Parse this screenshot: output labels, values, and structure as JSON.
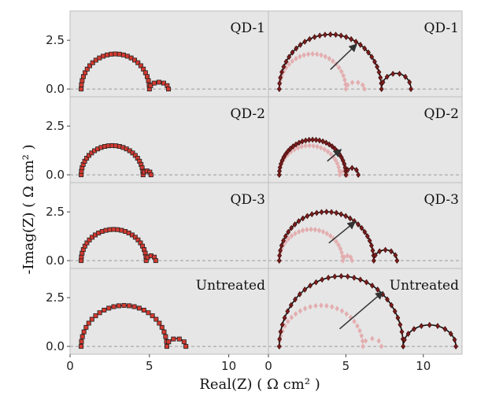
{
  "chart_data": {
    "type": "scatter",
    "xlabel": "Real(Z) ( Ω cm² )",
    "ylabel": "-Imag(Z) ( Ω cm² )",
    "xlim": [
      0,
      12.5
    ],
    "ylim": [
      -0.4,
      4.0
    ],
    "xticks": [
      "0",
      "5",
      "10"
    ],
    "yticks": [
      "0.0",
      "2.5"
    ],
    "grid": false,
    "background": "#e6e6e6",
    "rows": [
      "QD-1",
      "QD-2",
      "QD-3",
      "Untreated"
    ],
    "left_column": [
      {
        "label": "QD-1",
        "r0": 0.7,
        "arc_end": 5.0,
        "arc_height": 1.8,
        "tail_end": 6.2,
        "tail_height": 0.35
      },
      {
        "label": "QD-2",
        "r0": 0.7,
        "arc_end": 4.6,
        "arc_height": 1.5,
        "tail_end": 5.1,
        "tail_height": 0.2
      },
      {
        "label": "QD-3",
        "r0": 0.7,
        "arc_end": 4.8,
        "arc_height": 1.6,
        "tail_end": 5.4,
        "tail_height": 0.25
      },
      {
        "label": "Untreated",
        "r0": 0.7,
        "arc_end": 6.1,
        "arc_height": 2.1,
        "tail_end": 7.3,
        "tail_height": 0.4
      }
    ],
    "right_column": [
      {
        "label": "QD-1",
        "faded": {
          "r0": 0.7,
          "arc_end": 5.0,
          "arc_height": 1.8,
          "tail_end": 6.2,
          "tail_height": 0.35
        },
        "dark": {
          "r0": 0.7,
          "arc_end": 7.3,
          "arc_height": 2.8,
          "tail_end": 9.2,
          "tail_height": 0.8
        }
      },
      {
        "label": "QD-2",
        "faded": {
          "r0": 0.7,
          "arc_end": 4.6,
          "arc_height": 1.5,
          "tail_end": 5.1,
          "tail_height": 0.2
        },
        "dark": {
          "r0": 0.7,
          "arc_end": 5.0,
          "arc_height": 1.8,
          "tail_end": 5.8,
          "tail_height": 0.35
        }
      },
      {
        "label": "QD-3",
        "faded": {
          "r0": 0.7,
          "arc_end": 4.8,
          "arc_height": 1.6,
          "tail_end": 5.4,
          "tail_height": 0.25
        },
        "dark": {
          "r0": 0.7,
          "arc_end": 6.8,
          "arc_height": 2.5,
          "tail_end": 8.3,
          "tail_height": 0.55
        }
      },
      {
        "label": "Untreated",
        "faded": {
          "r0": 0.7,
          "arc_end": 6.1,
          "arc_height": 2.1,
          "tail_end": 7.3,
          "tail_height": 0.4
        },
        "dark": {
          "r0": 0.7,
          "arc_end": 8.7,
          "arc_height": 3.6,
          "tail_end": 12.1,
          "tail_height": 1.1
        }
      }
    ],
    "arrows": [
      {
        "from": [
          4.0,
          1.0
        ],
        "to": [
          5.7,
          2.3
        ]
      },
      {
        "from": [
          3.8,
          0.7
        ],
        "to": [
          4.7,
          1.3
        ]
      },
      {
        "from": [
          3.9,
          0.9
        ],
        "to": [
          5.6,
          2.0
        ]
      },
      {
        "from": [
          4.6,
          0.9
        ],
        "to": [
          7.4,
          2.8
        ]
      }
    ],
    "colors": {
      "marker_fill": "#d43a30",
      "marker_edge": "#222222",
      "dark_marker": "#7a1c1c",
      "faded_marker": "#e3aeb0",
      "fit_line": "#6e0a0a",
      "zero_line": "#9a9a9a",
      "arrow": "#333333"
    }
  }
}
